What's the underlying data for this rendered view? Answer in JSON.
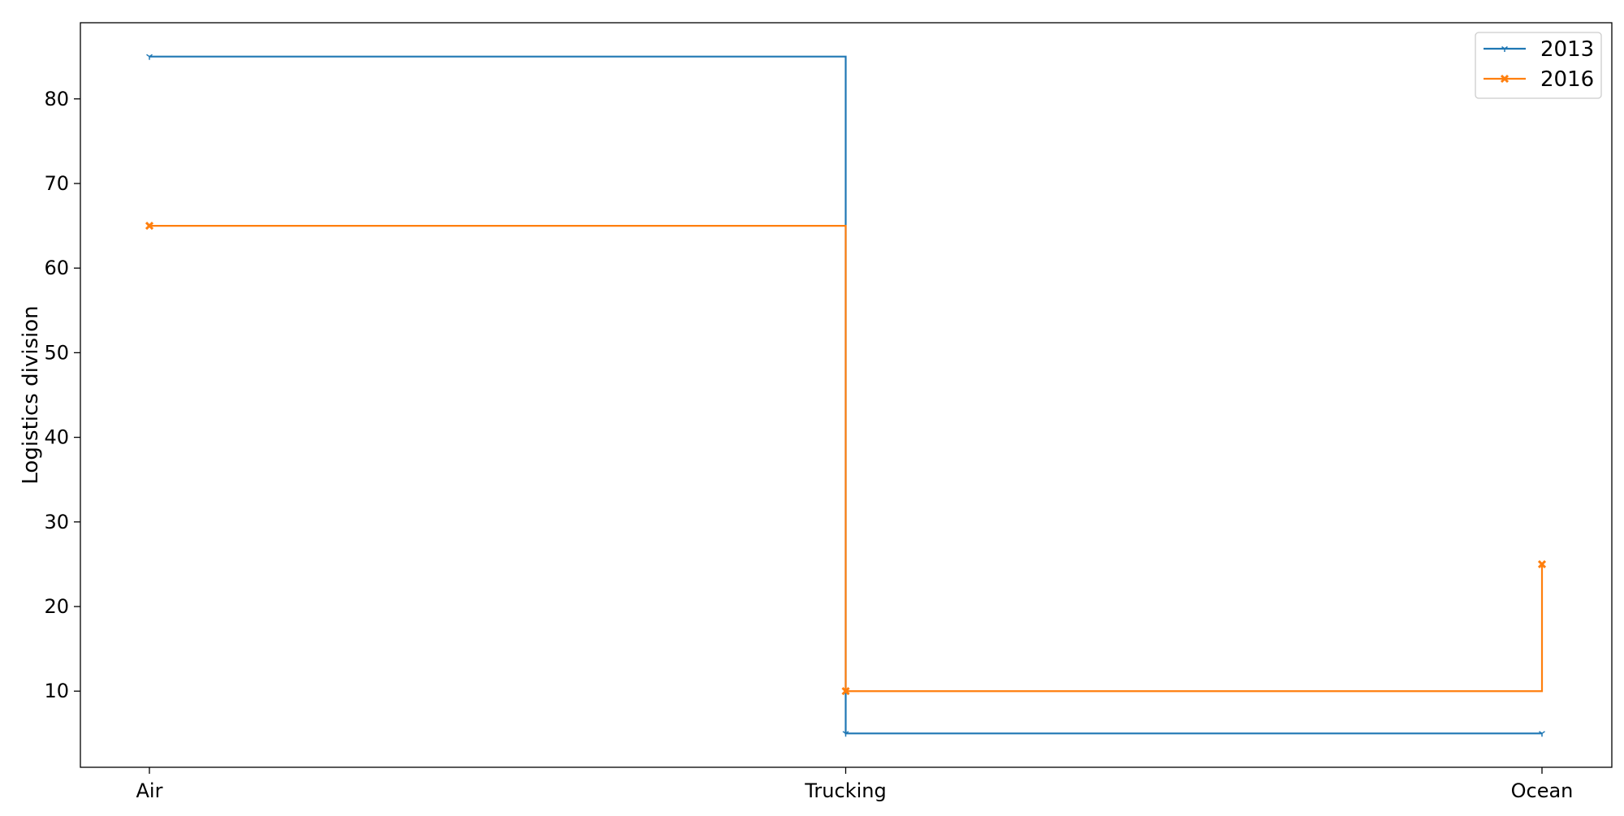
{
  "chart_data": {
    "type": "line",
    "step": "post",
    "categories": [
      "Air",
      "Trucking",
      "Ocean"
    ],
    "series": [
      {
        "name": "2013",
        "values": [
          85,
          5,
          5
        ],
        "color": "#1f77b4",
        "marker": "tri_down"
      },
      {
        "name": "2016",
        "values": [
          65,
          10,
          25
        ],
        "color": "#ff7f0e",
        "marker": "x"
      }
    ],
    "title": "",
    "xlabel": "",
    "ylabel": "Logistics division",
    "ylim": [
      1,
      89
    ],
    "yticks": [
      10,
      20,
      30,
      40,
      50,
      60,
      70,
      80
    ],
    "grid": false,
    "legend_position": "top-right"
  }
}
